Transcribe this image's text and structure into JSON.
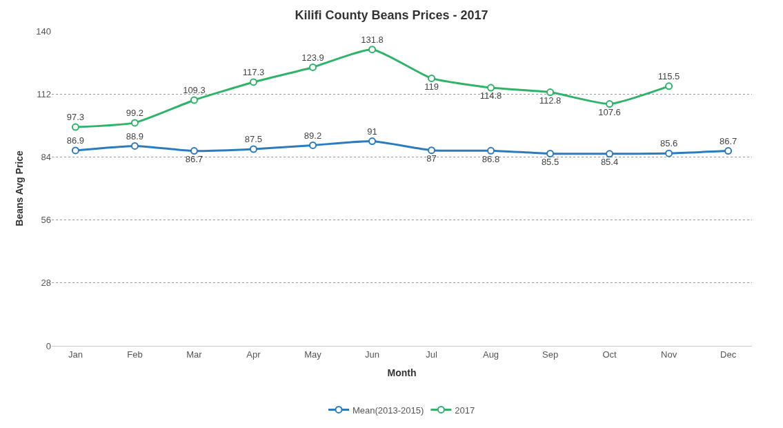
{
  "chart_data": {
    "type": "line",
    "title": "Kilifi County Beans Prices - 2017",
    "xlabel": "Month",
    "ylabel": "Beans Avg Price",
    "categories": [
      "Jan",
      "Feb",
      "Mar",
      "Apr",
      "May",
      "Jun",
      "Jul",
      "Aug",
      "Sep",
      "Oct",
      "Nov",
      "Dec"
    ],
    "series": [
      {
        "name": "Mean(2013-2015)",
        "color": "#2b7bbf",
        "values": [
          86.9,
          88.9,
          86.7,
          87.5,
          89.2,
          91,
          87,
          86.8,
          85.5,
          85.4,
          85.6,
          86.7
        ]
      },
      {
        "name": "2017",
        "color": "#2fb36a",
        "values": [
          97.3,
          99.2,
          109.3,
          117.3,
          123.9,
          131.8,
          119,
          114.8,
          112.8,
          107.6,
          115.5,
          null
        ]
      }
    ],
    "ylim": [
      0,
      140
    ],
    "yticks": [
      0,
      28,
      56,
      84,
      112,
      140
    ],
    "grid": "y",
    "legend": "bottom",
    "marker": "circle",
    "line_style": "solid",
    "data_labels": true
  }
}
